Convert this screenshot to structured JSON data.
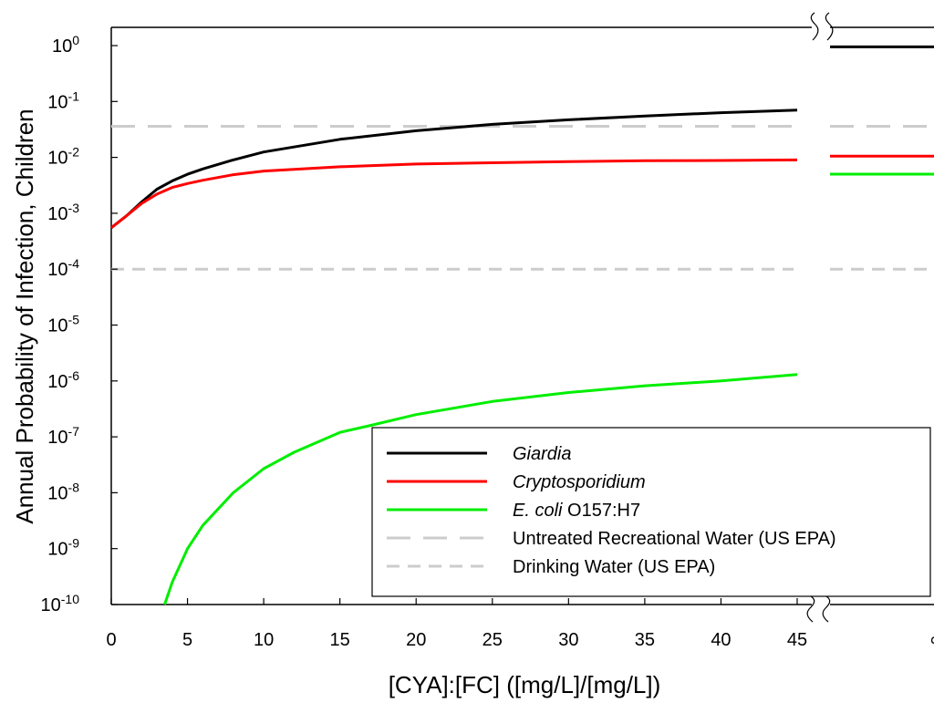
{
  "chart_data": {
    "type": "line",
    "xlabel": "[CYA]:[FC] ([mg/L]/[mg/L])",
    "ylabel": "Annual Probability of Infection, Children",
    "x_scale": "linear",
    "y_scale": "log",
    "xlim": [
      0,
      45
    ],
    "ylim_exponents": [
      -10,
      0
    ],
    "x_ticks": [
      "0",
      "5",
      "10",
      "15",
      "20",
      "25",
      "30",
      "35",
      "40",
      "45"
    ],
    "x_break_label": "∞",
    "y_tick_base": "10",
    "y_tick_exponents": [
      "0",
      "-1",
      "-2",
      "-3",
      "-4",
      "-5",
      "-6",
      "-7",
      "-8",
      "-9",
      "-10"
    ],
    "axis_break": true,
    "grid": false,
    "legend_position": "lower-right",
    "series": [
      {
        "name": "Giardia",
        "name_suffix": "",
        "italic": true,
        "color": "#000000",
        "style": "solid",
        "x": [
          0,
          1,
          2,
          3,
          4,
          5,
          6,
          8,
          10,
          15,
          20,
          25,
          30,
          35,
          40,
          45
        ],
        "y": [
          0.00055,
          0.0009,
          0.0016,
          0.0027,
          0.0038,
          0.005,
          0.0062,
          0.009,
          0.0125,
          0.021,
          0.03,
          0.039,
          0.047,
          0.055,
          0.063,
          0.07
        ],
        "infinity_value": 0.95
      },
      {
        "name": "Cryptosporidium",
        "name_suffix": "",
        "italic": true,
        "color": "#ff0000",
        "style": "solid",
        "x": [
          0,
          1,
          2,
          3,
          4,
          5,
          6,
          8,
          10,
          15,
          20,
          25,
          30,
          35,
          40,
          45
        ],
        "y": [
          0.00055,
          0.0009,
          0.0015,
          0.0022,
          0.0029,
          0.0034,
          0.0039,
          0.0049,
          0.0057,
          0.0068,
          0.0076,
          0.008,
          0.0084,
          0.0087,
          0.0088,
          0.009
        ],
        "infinity_value": 0.0105
      },
      {
        "name": "E. coli",
        "name_suffix": " O157:H7",
        "italic": true,
        "color": "#00ee00",
        "style": "solid",
        "x": [
          3.5,
          4,
          5,
          6,
          8,
          10,
          12,
          15,
          17,
          20,
          25,
          30,
          35,
          40,
          45
        ],
        "y": [
          1e-10,
          2.5e-10,
          1e-09,
          2.6e-09,
          1e-08,
          2.7e-08,
          5.3e-08,
          1.2e-07,
          1.6e-07,
          2.5e-07,
          4.3e-07,
          6.2e-07,
          8.2e-07,
          1e-06,
          1.3e-06
        ],
        "infinity_value": 0.005
      },
      {
        "name": "Untreated Recreational Water (US EPA)",
        "name_suffix": "",
        "italic": false,
        "color": "#cccccc",
        "style": "long-dash",
        "constant": 0.036
      },
      {
        "name": "Drinking Water (US EPA)",
        "name_suffix": "",
        "italic": false,
        "color": "#cccccc",
        "style": "dash",
        "constant": 0.0001
      }
    ]
  }
}
